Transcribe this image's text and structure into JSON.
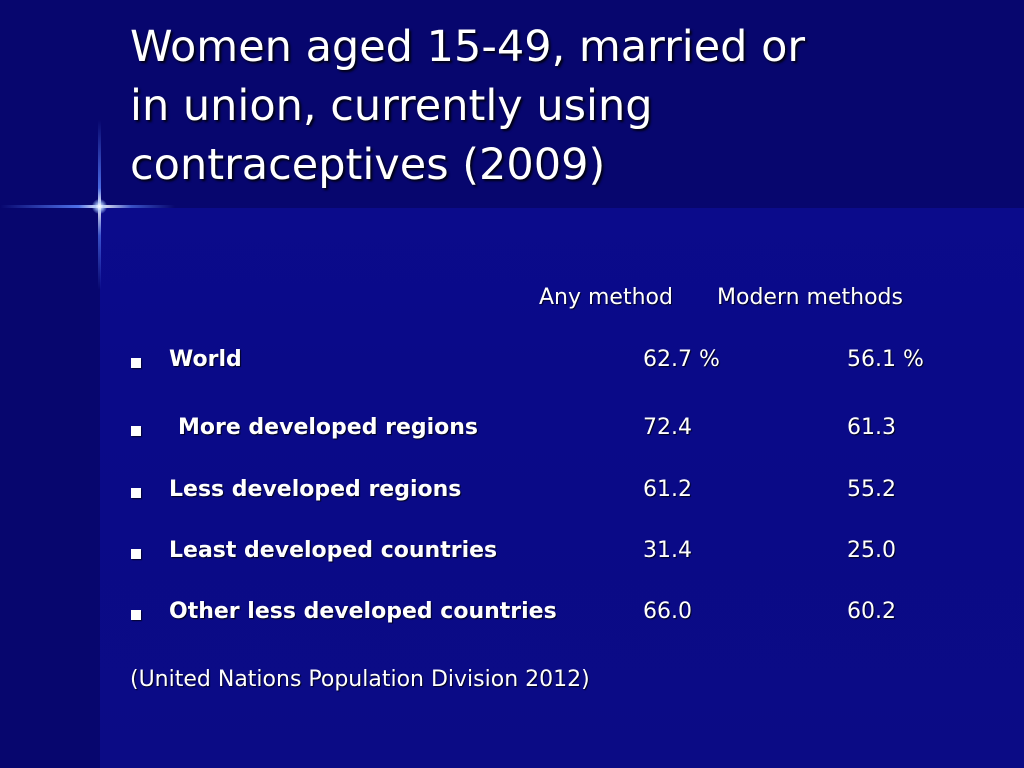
{
  "title_lines": [
    "Women aged 15-49, married or",
    "in union, currently using",
    "contraceptives (2009)"
  ],
  "table": {
    "headers": {
      "any_method": "Any method",
      "modern_methods": "Modern methods"
    },
    "rows": [
      {
        "label": "World",
        "any": "62.7 %",
        "modern": "56.1 %"
      },
      {
        "label": "More developed regions",
        "any": "72.4",
        "modern": "61.3"
      },
      {
        "label": "Less developed regions",
        "any": "61.2",
        "modern": "55.2"
      },
      {
        "label": "Least developed countries",
        "any": "31.4",
        "modern": "25.0"
      },
      {
        "label": "Other less developed countries",
        "any": "66.0",
        "modern": "60.2"
      }
    ]
  },
  "source": "(United Nations Population Division 2012)",
  "colors": {
    "background": "#0b0b8a",
    "header_band": "#07066e",
    "text": "#ffffff"
  },
  "icons": {
    "bullet": "square-bullet-icon",
    "flare": "star-flare-icon"
  }
}
